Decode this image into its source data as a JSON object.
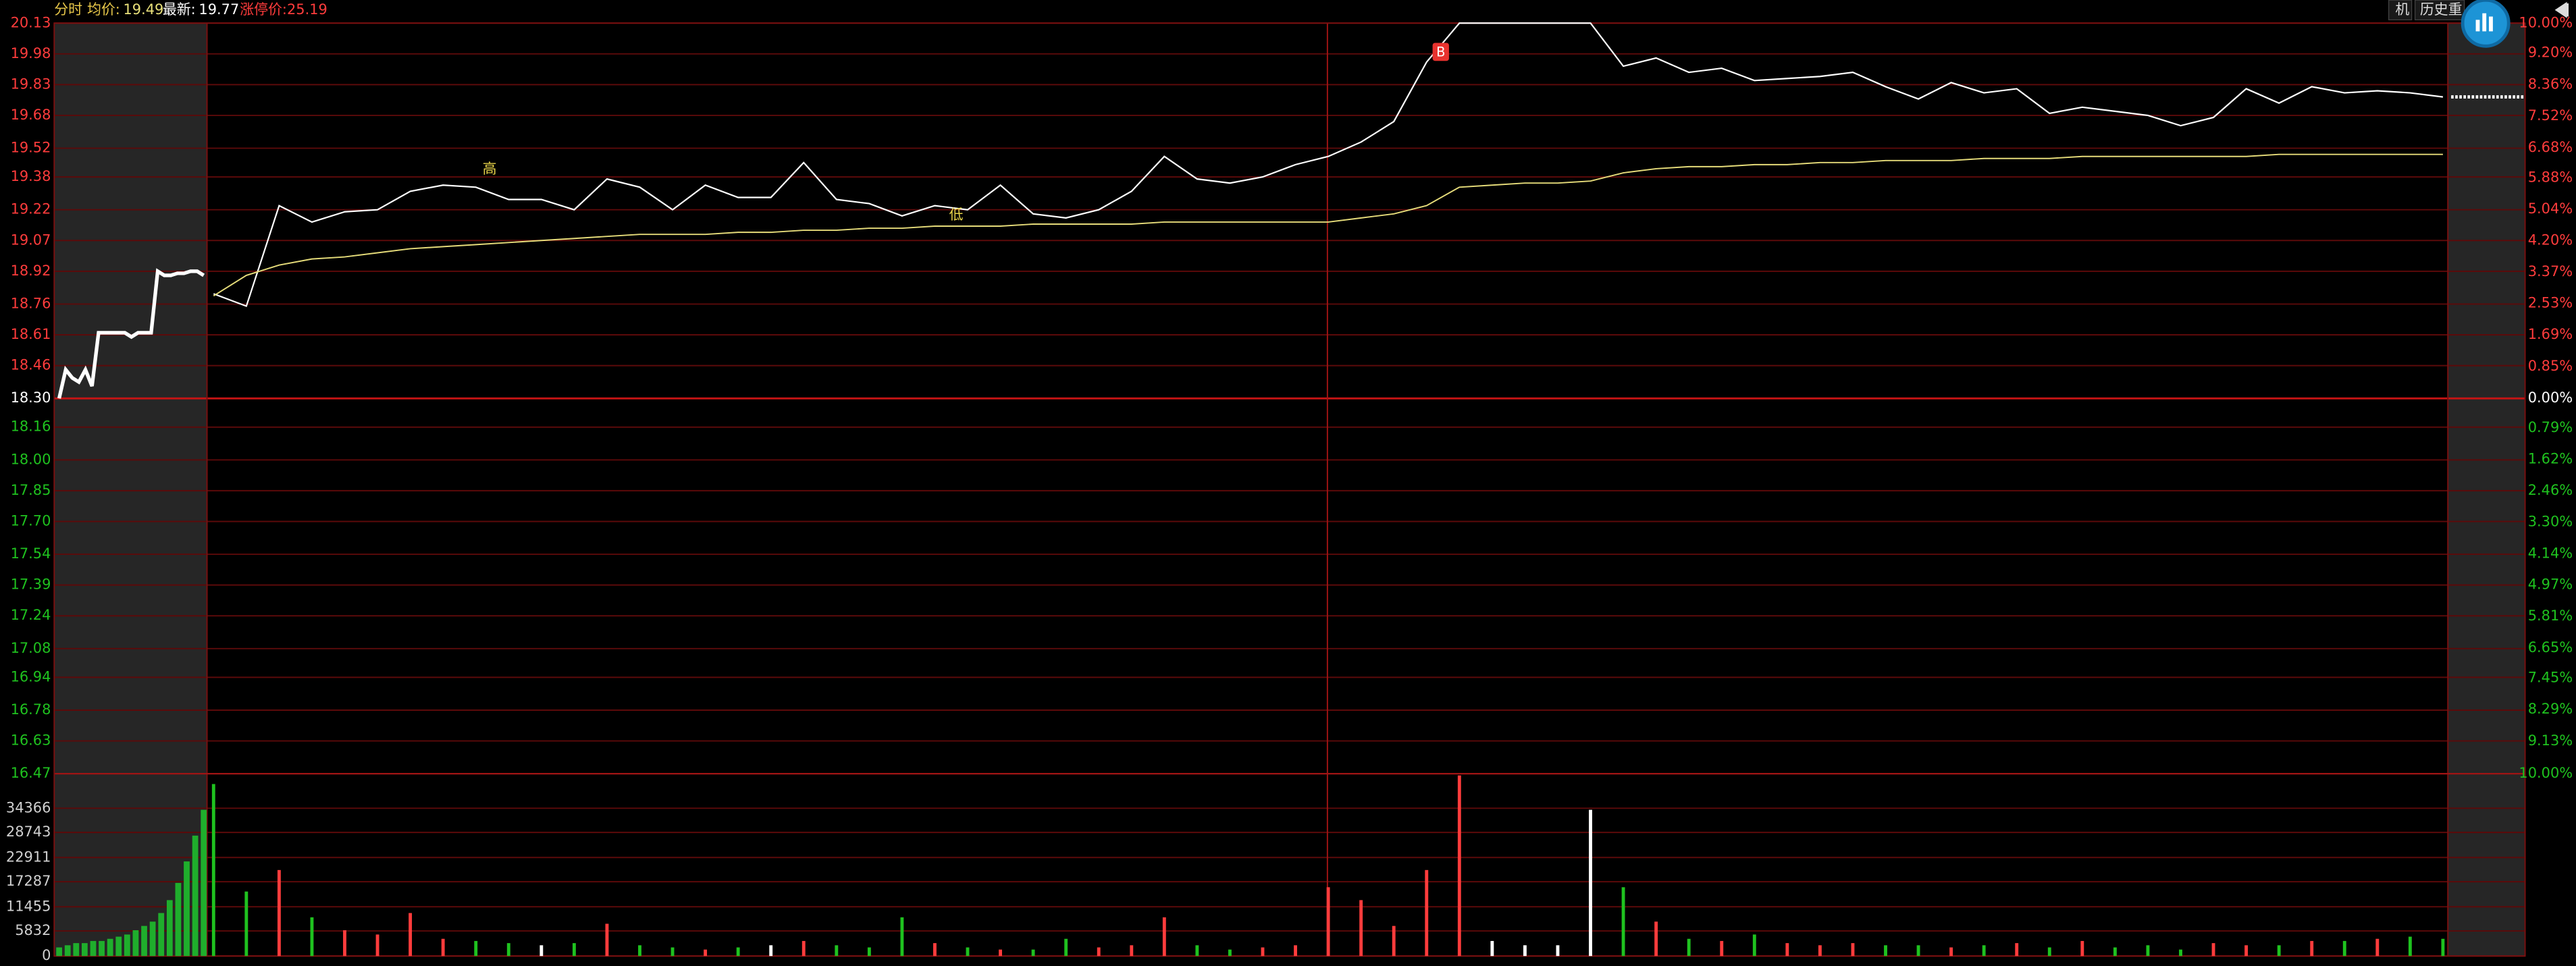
{
  "toolbar": [
    "机",
    "历史重"
  ],
  "chart_data": [
    {
      "type": "line",
      "label": "分时",
      "avg_label": "均价:",
      "avg_value": 19.49,
      "last_label": "最新:",
      "last_value": 19.77,
      "limit_text": "涨停价:25.19",
      "annotations": [
        "高",
        "低",
        "B"
      ],
      "series": [
        {
          "color": "#ffffff",
          "values": [
            18.81,
            18.75,
            19.24,
            19.16,
            19.21,
            19.22,
            19.31,
            19.34,
            19.33,
            19.27,
            19.27,
            19.22,
            19.37,
            19.33,
            19.22,
            19.34,
            19.28,
            19.28,
            19.45,
            19.27,
            19.25,
            19.19,
            19.24,
            19.22,
            19.34,
            19.2,
            19.18,
            19.22,
            19.31,
            19.48,
            19.37,
            19.35,
            19.38,
            19.44,
            19.48,
            19.55,
            19.65,
            19.94,
            20.13,
            20.13,
            20.13,
            20.13,
            20.13,
            19.92,
            19.96,
            19.89,
            19.91,
            19.85,
            19.86,
            19.87,
            19.89,
            19.82,
            19.76,
            19.84,
            19.79,
            19.81,
            19.69,
            19.72,
            19.7,
            19.68,
            19.63,
            19.67,
            19.81,
            19.74,
            19.82,
            19.79,
            19.8,
            19.79,
            19.77
          ]
        },
        {
          "color": "#e6dc7a",
          "values": [
            18.8,
            18.9,
            18.95,
            18.98,
            18.99,
            19.01,
            19.03,
            19.04,
            19.05,
            19.06,
            19.07,
            19.08,
            19.09,
            19.1,
            19.1,
            19.1,
            19.11,
            19.11,
            19.12,
            19.12,
            19.13,
            19.13,
            19.14,
            19.14,
            19.14,
            19.15,
            19.15,
            19.15,
            19.15,
            19.16,
            19.16,
            19.16,
            19.16,
            19.16,
            19.16,
            19.18,
            19.2,
            19.24,
            19.33,
            19.34,
            19.35,
            19.35,
            19.36,
            19.4,
            19.42,
            19.43,
            19.43,
            19.44,
            19.44,
            19.45,
            19.45,
            19.46,
            19.46,
            19.46,
            19.47,
            19.47,
            19.47,
            19.48,
            19.48,
            19.48,
            19.48,
            19.48,
            19.48,
            19.49,
            19.49,
            19.49,
            19.49,
            19.49,
            19.49
          ]
        }
      ],
      "auction": {
        "color": "#ffffff",
        "values": [
          18.3,
          18.44,
          18.4,
          18.38,
          18.44,
          18.36,
          18.62,
          18.62,
          18.62,
          18.62,
          18.62,
          18.6,
          18.62,
          18.62,
          18.62,
          18.92,
          18.9,
          18.9,
          18.91,
          18.91,
          18.92,
          18.92,
          18.9
        ]
      },
      "ylim": [
        16.47,
        20.13
      ],
      "yticks": [
        20.13,
        19.98,
        19.83,
        19.68,
        19.52,
        19.38,
        19.22,
        19.07,
        18.92,
        18.76,
        18.61,
        18.46,
        {
          "value": 18.3,
          "label": "18.30"
        },
        18.16,
        {
          "value": 18,
          "label": "18.00"
        },
        17.85,
        {
          "value": 17.7,
          "label": "17.70"
        },
        17.54,
        17.39,
        17.24,
        17.08,
        16.94,
        16.78,
        16.63,
        16.47
      ],
      "y2lim": [
        -10,
        10
      ],
      "y2ticks": [
        {
          "value": 10,
          "label": "10.00%"
        },
        {
          "value": 9.2,
          "label": "9.20%"
        },
        {
          "value": 8.36,
          "label": "8.36%"
        },
        {
          "value": 7.52,
          "label": "7.52%"
        },
        {
          "value": 6.68,
          "label": "6.68%"
        },
        {
          "value": 5.88,
          "label": "5.88%"
        },
        {
          "value": 5.04,
          "label": "5.04%"
        },
        {
          "value": 4.2,
          "label": "4.20%"
        },
        {
          "value": 3.37,
          "label": "3.37%"
        },
        {
          "value": 2.53,
          "label": "2.53%"
        },
        {
          "value": 1.69,
          "label": "1.69%"
        },
        {
          "value": 0.85,
          "label": "0.85%"
        },
        {
          "value": 0,
          "label": "0.00%"
        },
        {
          "value": -0.79,
          "label": "0.79%"
        },
        {
          "value": -1.62,
          "label": "1.62%"
        },
        {
          "value": -2.46,
          "label": "2.46%"
        },
        {
          "value": -3.3,
          "label": "3.30%"
        },
        {
          "value": -4.14,
          "label": "4.14%"
        },
        {
          "value": -4.97,
          "label": "4.97%"
        },
        {
          "value": -5.81,
          "label": "5.81%"
        },
        {
          "value": -6.65,
          "label": "6.65%"
        },
        {
          "value": -7.45,
          "label": "7.45%"
        },
        {
          "value": -8.29,
          "label": "8.29%"
        },
        {
          "value": -9.13,
          "label": "9.13%"
        },
        {
          "value": -10,
          "label": "10.00%"
        }
      ],
      "grid": true,
      "grid_color": "#5c0a0a",
      "zero_color": "#c81414",
      "up_color": "#ff3c3c",
      "down_color": "#1fc21f",
      "flat_color": "#ffffff"
    },
    {
      "type": "bar",
      "values": [
        40000,
        15000,
        20000,
        9000,
        6000,
        5000,
        10000,
        4000,
        3500,
        3000,
        2500,
        3000,
        7500,
        2500,
        2000,
        1500,
        2000,
        2500,
        3500,
        2500,
        2000,
        9000,
        3000,
        2000,
        1500,
        1500,
        4000,
        2000,
        2500,
        9000,
        2500,
        1500,
        2000,
        2500,
        16000,
        13000,
        7000,
        20000,
        42000,
        3500,
        2500,
        2500,
        34000,
        16000,
        8000,
        4000,
        3500,
        5000,
        3000,
        2500,
        3000,
        2500,
        2500,
        2000,
        2500,
        3000,
        2000,
        3500,
        2000,
        2500,
        1500,
        3000,
        2500,
        2500,
        3500,
        3500,
        4000,
        4500,
        4000
      ],
      "auction_values": [
        2000,
        2500,
        3000,
        3000,
        3500,
        3500,
        4000,
        4500,
        5000,
        6000,
        7000,
        8000,
        10000,
        13000,
        17000,
        22000,
        28000,
        34000
      ],
      "auction_color": "#1fae2c",
      "ylim": [
        0,
        42400
      ],
      "yticks": [
        0,
        5832,
        11455,
        17287,
        22911,
        28743,
        34366
      ],
      "tick_color": "#d0d0d0"
    }
  ]
}
